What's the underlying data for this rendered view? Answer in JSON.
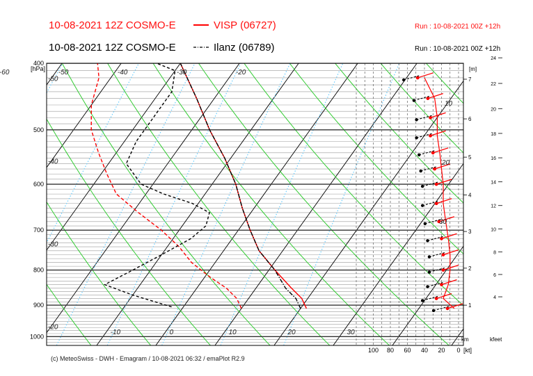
{
  "header": {
    "title1": "10-08-2021 12Z COSMO-E",
    "legend1": "VISP (06727)",
    "run1": "Run : 10-08-2021 00Z +12h",
    "title2": "10-08-2021 12Z COSMO-E",
    "legend2": "Ilanz (06789)",
    "run2": "Run : 10-08-2021 00Z +12h"
  },
  "footer": "(c) MeteoSwiss - DWH - Emagram / 10-08-2021  06:32 / emaPlot R2.9",
  "colors": {
    "visp": "#ff0000",
    "ilanz": "#000000",
    "dry_adiabat": "#33cc33",
    "mixing_ratio": "#66ccff",
    "isotherm": "#000000"
  },
  "chart_data": {
    "type": "line",
    "y_axis": {
      "label": "[hPa]",
      "ticks": [
        "400",
        "500",
        "600",
        "700",
        "800",
        "900",
        "1000"
      ],
      "scale": "log",
      "ylim": [
        1030,
        400
      ]
    },
    "x_axis": {
      "isotherm_labels": [
        "-60",
        "-50",
        "-40",
        "-30",
        "-20",
        "-10",
        "0",
        "10",
        "20",
        "30"
      ]
    },
    "left_isotherm_labels": [
      -60,
      -50,
      -40,
      -30,
      -20
    ],
    "height_axis": {
      "label": "[m]",
      "unit_label": "km",
      "ticks": [
        "1",
        "2",
        "3",
        "4",
        "5",
        "6",
        "7"
      ]
    },
    "feet_axis": {
      "unit_label": "kfeet",
      "ticks": [
        "4",
        "6",
        "8",
        "10",
        "12",
        "14",
        "16",
        "18",
        "20",
        "22",
        "24"
      ]
    },
    "wind_axis": {
      "unit_label": "[kt]",
      "ticks": [
        "100",
        "80",
        "60",
        "40",
        "20",
        "0"
      ]
    },
    "wind_grid_inline_labels": [
      "10",
      "20",
      "30"
    ],
    "series": [
      {
        "name": "VISP (06727)",
        "kind": "temperature",
        "p": [
          910,
          880,
          850,
          800,
          750,
          700,
          650,
          600,
          550,
          500,
          450,
          400
        ],
        "t": [
          21,
          19,
          16,
          11,
          6,
          2,
          -2,
          -6,
          -11,
          -17,
          -23,
          -30
        ]
      },
      {
        "name": "VISP (06727)",
        "kind": "dewpoint",
        "p": [
          910,
          880,
          850,
          820,
          780,
          740,
          700,
          660,
          620,
          580,
          540,
          500,
          460,
          420,
          400
        ],
        "t": [
          10,
          8,
          5,
          1,
          -4,
          -8,
          -13,
          -19,
          -25,
          -29,
          -33,
          -37,
          -40,
          -42,
          -44
        ]
      },
      {
        "name": "Ilanz (06789)",
        "kind": "temperature",
        "p": [
          910,
          880,
          850,
          800,
          750,
          700,
          650,
          600,
          550,
          500,
          450,
          400
        ],
        "t": [
          20,
          18,
          15,
          11,
          6,
          2,
          -2,
          -6,
          -11,
          -17,
          -23,
          -30
        ]
      },
      {
        "name": "Ilanz (06789)",
        "kind": "dewpoint",
        "p": [
          905,
          870,
          840,
          800,
          760,
          720,
          690,
          660,
          640,
          620,
          600,
          560,
          520,
          480,
          440,
          410,
          400
        ],
        "t": [
          -2,
          -10,
          -16,
          -13,
          -10,
          -7,
          -6,
          -7,
          -11,
          -17,
          -22,
          -27,
          -28,
          -28,
          -28,
          -30,
          -34
        ]
      }
    ],
    "wind_profile_kt": [
      {
        "p": 420,
        "speed": 40
      },
      {
        "p": 450,
        "speed": 28
      },
      {
        "p": 480,
        "speed": 25
      },
      {
        "p": 510,
        "speed": 25
      },
      {
        "p": 540,
        "speed": 22
      },
      {
        "p": 570,
        "speed": 20
      },
      {
        "p": 600,
        "speed": 18
      },
      {
        "p": 640,
        "speed": 18
      },
      {
        "p": 680,
        "speed": 15
      },
      {
        "p": 720,
        "speed": 12
      },
      {
        "p": 760,
        "speed": 10
      },
      {
        "p": 800,
        "speed": 10
      },
      {
        "p": 840,
        "speed": 12
      },
      {
        "p": 880,
        "speed": 18
      },
      {
        "p": 910,
        "speed": 5
      }
    ]
  }
}
